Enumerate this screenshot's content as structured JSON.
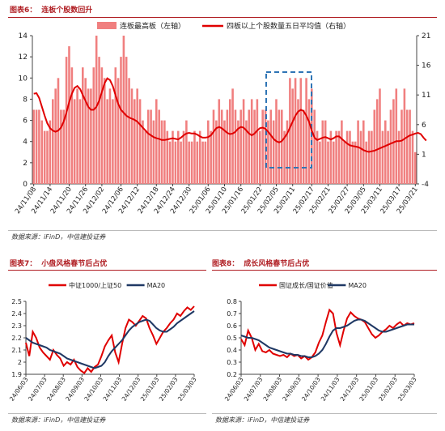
{
  "figures": [
    {
      "label": "图表6：",
      "title": "连板个股数回升",
      "source": "数据来源：iFinD，中信建投证券",
      "chart_data": {
        "type": "bar+line",
        "series": [
          {
            "name": "连板最高板（左轴）",
            "axis": "left",
            "type": "bar",
            "color": "#f07f7f",
            "values": [
              7,
              7,
              7,
              6,
              5,
              5,
              6,
              8,
              9,
              10,
              7,
              7,
              12,
              13,
              11,
              8,
              9,
              8,
              11,
              10,
              9,
              9,
              11,
              14,
              12,
              11,
              10,
              8,
              9,
              8,
              11,
              10,
              12,
              14,
              12,
              10,
              9,
              8,
              9,
              8,
              6,
              5,
              7,
              7,
              6,
              8,
              7,
              6,
              6,
              5,
              4,
              5,
              4,
              5,
              4,
              5,
              6,
              4,
              4,
              5,
              4,
              5,
              4,
              4,
              6,
              5,
              7,
              6,
              8,
              7,
              6,
              7,
              8,
              9,
              7,
              6,
              7,
              8,
              6,
              7,
              8,
              7,
              8,
              5,
              7,
              7,
              6,
              7,
              6,
              8,
              7,
              7,
              5,
              6,
              10,
              9,
              10,
              8,
              10,
              7,
              10,
              8,
              9,
              7,
              5,
              4,
              6,
              6,
              4,
              5,
              4,
              5,
              5,
              6,
              4,
              5,
              5,
              4,
              4,
              6,
              5,
              6,
              4,
              5,
              5,
              7,
              8,
              9,
              5,
              6,
              5,
              7,
              8,
              9,
              5,
              7,
              9,
              7,
              7,
              5,
              3
            ]
          },
          {
            "name": "四板以上个股数量五日平均值（右轴）",
            "axis": "right",
            "type": "line",
            "color": "#e00000",
            "values": [
              11.2,
              11.3,
              10.5,
              9.0,
              7.5,
              6.2,
              5.4,
              5.0,
              4.8,
              5.0,
              5.5,
              6.5,
              8.0,
              9.8,
              11.2,
              12.2,
              12.5,
              12.0,
              11.0,
              10.0,
              9.0,
              8.5,
              8.5,
              9.0,
              10.0,
              11.5,
              13.0,
              13.8,
              13.5,
              12.5,
              11.0,
              9.5,
              8.5,
              8.0,
              7.5,
              7.2,
              7.0,
              6.8,
              6.5,
              6.0,
              5.5,
              5.0,
              4.5,
              4.2,
              3.9,
              3.7,
              3.6,
              3.4,
              3.4,
              3.5,
              3.6,
              3.7,
              3.6,
              3.5,
              3.8,
              4.2,
              4.5,
              4.6,
              4.5,
              4.5,
              4.3,
              4.0,
              3.8,
              3.8,
              3.9,
              4.2,
              4.8,
              5.4,
              5.6,
              5.4,
              5.0,
              4.6,
              4.4,
              4.5,
              4.8,
              5.3,
              5.6,
              5.5,
              5.0,
              4.5,
              4.2,
              4.5,
              5.0,
              5.4,
              5.5,
              5.3,
              4.8,
              4.2,
              3.6,
              3.2,
              3.0,
              3.2,
              3.8,
              4.5,
              5.5,
              6.5,
              7.5,
              8.2,
              8.5,
              8.3,
              7.5,
              6.5,
              5.0,
              3.8,
              3.4,
              3.6,
              3.8,
              3.9,
              3.7,
              3.5,
              3.7,
              4.0,
              4.0,
              3.6,
              3.2,
              2.8,
              2.5,
              2.4,
              2.3,
              2.2,
              2.0,
              1.7,
              1.5,
              1.4,
              1.5,
              1.6,
              1.8,
              2.0,
              2.2,
              2.4,
              2.6,
              2.8,
              3.0,
              3.2,
              3.2,
              3.3,
              3.6,
              3.9,
              4.2,
              4.3,
              4.5,
              4.6,
              4.4,
              3.8,
              3.3
            ]
          }
        ],
        "x_tick_labels": [
          "24/11/08",
          "24/11/14",
          "24/11/20",
          "24/11/26",
          "24/12/02",
          "24/12/06",
          "24/12/12",
          "24/12/18",
          "24/12/24",
          "24/12/30",
          "25/01/06",
          "25/01/10",
          "25/01/16",
          "25/01/22",
          "25/02/05",
          "25/02/11",
          "25/02/17",
          "25/02/21",
          "25/02/27",
          "25/03/05",
          "25/03/11",
          "25/03/17",
          "25/03/21"
        ],
        "y_left": {
          "min": 0,
          "max": 14,
          "step": 2,
          "ticks": [
            "0",
            "2",
            "4",
            "6",
            "8",
            "10",
            "12",
            "14"
          ]
        },
        "y_right": {
          "min": -4,
          "max": 21,
          "step": 5,
          "ticks": [
            "-4",
            "1",
            "6",
            "11",
            "16",
            "21"
          ]
        },
        "grid": false,
        "legend_position": "top"
      }
    },
    {
      "label": "图表7：",
      "title": "小盘风格春节后占优",
      "source": "数据来源：iFinD，中信建投证券",
      "chart_data": {
        "type": "line",
        "series": [
          {
            "name": "中证1000/上证50",
            "color": "#e00000",
            "values": [
              2.16,
              2.05,
              2.25,
              2.2,
              2.12,
              2.08,
              2.05,
              2.02,
              2.1,
              2.06,
              2.03,
              1.97,
              2.0,
              1.98,
              2.02,
              1.96,
              1.93,
              1.91,
              1.95,
              1.92,
              1.96,
              1.98,
              2.05,
              2.13,
              2.18,
              2.22,
              2.08,
              2.0,
              2.15,
              2.28,
              2.35,
              2.33,
              2.3,
              2.34,
              2.38,
              2.36,
              2.28,
              2.22,
              2.15,
              2.2,
              2.25,
              2.28,
              2.32,
              2.35,
              2.4,
              2.38,
              2.42,
              2.45,
              2.43,
              2.46
            ]
          },
          {
            "name": "MA20",
            "color": "#1f3864",
            "values": [
              2.2,
              2.18,
              2.16,
              2.15,
              2.14,
              2.13,
              2.12,
              2.1,
              2.09,
              2.08,
              2.07,
              2.05,
              2.03,
              2.02,
              2.01,
              2.0,
              1.99,
              1.98,
              1.97,
              1.96,
              1.95,
              1.96,
              1.97,
              2.0,
              2.05,
              2.09,
              2.12,
              2.15,
              2.18,
              2.22,
              2.26,
              2.29,
              2.31,
              2.33,
              2.34,
              2.35,
              2.34,
              2.31,
              2.28,
              2.26,
              2.25,
              2.25,
              2.27,
              2.29,
              2.32,
              2.34,
              2.36,
              2.38,
              2.4,
              2.42
            ]
          }
        ],
        "x_tick_labels": [
          "24/06/03",
          "24/07/03",
          "24/08/03",
          "24/09/03",
          "24/10/03",
          "24/11/03",
          "24/12/03",
          "25/01/03",
          "25/02/03",
          "25/03/03"
        ],
        "y": {
          "min": 1.9,
          "max": 2.5,
          "step": 0.1,
          "ticks": [
            "1.9",
            "2",
            "2.1",
            "2.2",
            "2.3",
            "2.4",
            "2.5"
          ]
        },
        "grid": false,
        "legend_position": "top"
      }
    },
    {
      "label": "图表8：",
      "title": "成长风格春节后占优",
      "source": "数据来源：iFinD，中信建投证券",
      "chart_data": {
        "type": "line",
        "series": [
          {
            "name": "国证成长/国证价值",
            "color": "#e00000",
            "values": [
              0.49,
              0.44,
              0.56,
              0.5,
              0.4,
              0.45,
              0.39,
              0.38,
              0.4,
              0.37,
              0.36,
              0.35,
              0.36,
              0.34,
              0.37,
              0.35,
              0.36,
              0.33,
              0.35,
              0.32,
              0.34,
              0.38,
              0.46,
              0.52,
              0.63,
              0.73,
              0.7,
              0.54,
              0.44,
              0.56,
              0.66,
              0.71,
              0.68,
              0.66,
              0.65,
              0.63,
              0.58,
              0.53,
              0.5,
              0.52,
              0.55,
              0.57,
              0.6,
              0.58,
              0.61,
              0.63,
              0.6,
              0.62,
              0.61,
              0.62
            ]
          },
          {
            "name": "MA20",
            "color": "#1f3864",
            "values": [
              0.52,
              0.51,
              0.5,
              0.5,
              0.49,
              0.48,
              0.46,
              0.44,
              0.42,
              0.41,
              0.4,
              0.39,
              0.38,
              0.37,
              0.37,
              0.36,
              0.36,
              0.35,
              0.35,
              0.34,
              0.34,
              0.35,
              0.37,
              0.4,
              0.45,
              0.51,
              0.56,
              0.58,
              0.58,
              0.59,
              0.6,
              0.62,
              0.64,
              0.65,
              0.65,
              0.64,
              0.62,
              0.6,
              0.58,
              0.56,
              0.55,
              0.55,
              0.56,
              0.57,
              0.58,
              0.59,
              0.6,
              0.61,
              0.61,
              0.61
            ]
          }
        ],
        "x_tick_labels": [
          "24/06/03",
          "24/07/03",
          "24/08/03",
          "24/09/03",
          "24/10/03",
          "24/11/03",
          "24/12/03",
          "25/01/03",
          "25/02/03",
          "25/03/03"
        ],
        "y": {
          "min": 0.2,
          "max": 0.8,
          "step": 0.1,
          "ticks": [
            "0.2",
            "0.3",
            "0.4",
            "0.5",
            "0.6",
            "0.7",
            "0.8"
          ]
        },
        "grid": false,
        "legend_position": "top"
      }
    }
  ]
}
